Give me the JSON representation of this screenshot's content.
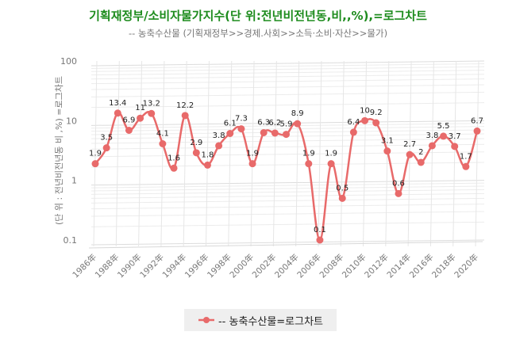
{
  "chart_data": {
    "type": "line",
    "title": "기획재정부/소비자물가지수(단 위:전년비전년동,비,,%),=로그차트",
    "subtitle": "-- 농축수산물 (기획재정부>>경제.사회>>소득·소비·자산>>물가)",
    "ylabel": "(단 위 : 전년비전년동 비 ,%) =로그차트",
    "xlabel": "",
    "y_scale": "log",
    "ylim": [
      0.1,
      100
    ],
    "y_ticks": [
      "0.1",
      "1",
      "10",
      "100"
    ],
    "x": [
      "1986",
      "1987",
      "1988",
      "1989",
      "1990",
      "1991",
      "1992",
      "1993",
      "1994",
      "1995",
      "1996",
      "1997",
      "1998",
      "1999",
      "2000",
      "2001",
      "2002",
      "2003",
      "2004",
      "2005",
      "2006",
      "2007",
      "2008",
      "2009",
      "2010",
      "2011",
      "2012",
      "2013",
      "2014",
      "2015",
      "2016",
      "2017",
      "2018",
      "2019",
      "2020"
    ],
    "x_tick_labels": [
      "1986年",
      "1988年",
      "1990年",
      "1992年",
      "1994年",
      "1996年",
      "1998年",
      "2000年",
      "2002年",
      "2004年",
      "2006年",
      "2008年",
      "2010年",
      "2012年",
      "2014年",
      "2016年",
      "2018年",
      "2020年"
    ],
    "series": [
      {
        "name": "-- 농축수산물=로그차트",
        "color": "#e86a6a",
        "values": [
          1.9,
          3.5,
          13.4,
          6.9,
          11,
          13.2,
          4.1,
          1.6,
          12.2,
          2.9,
          1.8,
          3.8,
          6.1,
          7.3,
          1.9,
          6.3,
          6.2,
          5.9,
          8.9,
          1.9,
          0.1,
          1.9,
          0.5,
          6.4,
          10,
          9.2,
          3.1,
          0.6,
          2.7,
          2,
          3.8,
          5.5,
          3.7,
          1.7,
          6.7
        ],
        "labels": [
          "1.9",
          "3.5",
          "13.4",
          "6.9",
          "11",
          "13.2",
          "4.1",
          "1.6",
          "12.2",
          "2.9",
          "1.8",
          "3.8",
          "6.1",
          "7.3",
          "1.9",
          "6.3",
          "6.2",
          "5.9",
          "8.9",
          "1.9",
          "0.1",
          "1.9",
          "0.5",
          "6.4",
          "10",
          "9.2",
          "3.1",
          "0.6",
          "2.7",
          "2",
          "3.8",
          "5.5",
          "3.7",
          "1.7",
          "6.7"
        ]
      }
    ],
    "grid": true,
    "legend": "bottom",
    "legend_label": "-- 농축수산물=로그차트"
  }
}
